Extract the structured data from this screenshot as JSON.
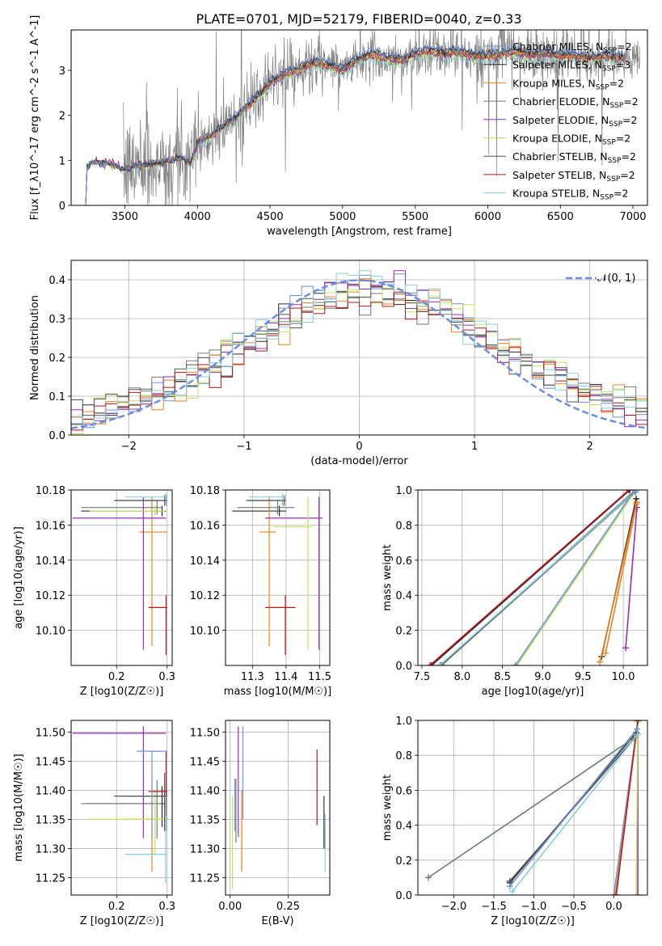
{
  "title": "PLATE=0701, MJD=52179, FIBERID=0040, z=0.33",
  "colors": {
    "data": "#808080",
    "series": [
      "#6d93d9",
      "#2a2a2a",
      "#f0821e",
      "#6e7e6e",
      "#9a2fb2",
      "#c6e05a",
      "#555555",
      "#b3191d",
      "#86d0dc"
    ],
    "normal": "#6a8fdc"
  },
  "chart_data": [
    {
      "type": "line",
      "panel": "spectrum",
      "xlabel": "wavelength [Angstrom, rest frame]",
      "ylabel": "Flux [f_λ10^-17 erg cm^-2 s^-1 A^-1]",
      "xlim": [
        3130,
        7100
      ],
      "ylim": [
        0,
        3.9
      ],
      "xticks": [
        3500,
        4000,
        4500,
        5000,
        5500,
        6000,
        6500,
        7000
      ],
      "yticks": [
        0,
        1,
        2,
        3
      ],
      "legend": {
        "placement": "top-right",
        "entries": [
          "Chabrier MILES, N_SSP=2",
          "Salpeter MILES, N_SSP=3",
          "Kroupa MILES, N_SSP=2",
          "Chabrier ELODIE, N_SSP=2",
          "Salpeter ELODIE, N_SSP=2",
          "Kroupa ELODIE, N_SSP=2",
          "Chabrier STELIB, N_SSP=2",
          "Salpeter STELIB, N_SSP=2",
          "Kroupa STELIB, N_SSP=2"
        ]
      },
      "model_anchors": {
        "x": [
          3240,
          3280,
          3400,
          3500,
          3600,
          3700,
          3800,
          3900,
          3950,
          4000,
          4100,
          4200,
          4300,
          4400,
          4500,
          4600,
          4700,
          4800,
          4900,
          5000,
          5100,
          5200,
          5300,
          5400,
          5500,
          5600,
          5700,
          5800,
          5900,
          6000,
          6100,
          6200,
          6300,
          6400,
          6500,
          6600,
          6700,
          6800,
          6900
        ],
        "y": [
          0.85,
          0.95,
          0.92,
          0.78,
          0.88,
          0.92,
          0.98,
          1.05,
          0.9,
          1.35,
          1.55,
          1.8,
          2.05,
          2.35,
          2.7,
          2.9,
          3.0,
          3.15,
          3.1,
          3.0,
          3.2,
          3.35,
          3.25,
          3.2,
          3.35,
          3.4,
          3.35,
          3.4,
          3.3,
          3.3,
          3.35,
          3.4,
          3.3,
          3.35,
          3.3,
          3.3,
          3.25,
          3.3,
          3.25
        ]
      },
      "data_range": [
        3230,
        7050
      ]
    },
    {
      "type": "line",
      "panel": "residuals",
      "xlabel": "(data-model)/error",
      "ylabel": "Normed distribution",
      "xlim": [
        -2.5,
        2.5
      ],
      "ylim": [
        0,
        0.45
      ],
      "xticks": [
        -2,
        -1,
        0,
        1,
        2
      ],
      "yticks": [
        0.0,
        0.1,
        0.2,
        0.3,
        0.4
      ],
      "legend": {
        "placement": "top-right",
        "entries": [
          "𝒩(0, 1)"
        ]
      },
      "bin_width": 0.1
    },
    {
      "type": "scatter",
      "panel": "age-vs-Z",
      "xlabel": "Z [log10(Z/Z☉)]",
      "ylabel": "age  [log10(age/yr)]",
      "xlim": [
        0.11,
        0.31
      ],
      "ylim": [
        10.08,
        10.18
      ],
      "xticks": [
        0.2,
        0.3
      ],
      "yticks": [
        10.1,
        10.12,
        10.14,
        10.16,
        10.18
      ],
      "points": [
        {
          "x": 0.298,
          "y": 10.174,
          "xerr": [
            0.1,
            0.002
          ],
          "yerr": [
            0.003,
            0.003
          ]
        },
        {
          "x": 0.29,
          "y": 10.168,
          "xerr": [
            0.16,
            0.008
          ],
          "yerr": [
            0.003,
            0.003
          ]
        },
        {
          "x": 0.27,
          "y": 10.156,
          "xerr": [
            0.025,
            0.03
          ],
          "yerr": [
            0.065,
            0.02
          ]
        },
        {
          "x": 0.28,
          "y": 10.17,
          "xerr": [
            0.15,
            0.01
          ],
          "yerr": [
            0.004,
            0.004
          ]
        },
        {
          "x": 0.253,
          "y": 10.164,
          "xerr": [
            0.14,
            0.045
          ],
          "yerr": [
            0.075,
            0.012
          ]
        },
        {
          "x": 0.276,
          "y": 10.168,
          "xerr": [
            0.13,
            0.02
          ],
          "yerr": [
            0.003,
            0.003
          ]
        },
        {
          "x": 0.295,
          "y": 10.174,
          "xerr": [
            0.1,
            0.005
          ],
          "yerr": [
            0.003,
            0.003
          ]
        },
        {
          "x": 0.298,
          "y": 10.113,
          "xerr": [
            0.035,
            0.002
          ],
          "yerr": [
            0.027,
            0.007
          ]
        },
        {
          "x": 0.297,
          "y": 10.176,
          "xerr": [
            0.08,
            0.003
          ],
          "yerr": [
            0.002,
            0.002
          ]
        }
      ]
    },
    {
      "type": "scatter",
      "panel": "age-vs-mass",
      "xlabel": "mass [log10(M/M☉)]",
      "ylabel": "",
      "xlim": [
        11.22,
        11.53
      ],
      "ylim": [
        10.08,
        10.18
      ],
      "xticks": [
        11.3,
        11.4,
        11.5
      ],
      "yticks": [
        10.1,
        10.12,
        10.14,
        10.16,
        10.18
      ],
      "points": [
        {
          "x": 11.39,
          "y": 10.174,
          "xerr": [
            0.11,
            0.005
          ],
          "yerr": [
            0.003,
            0.003
          ]
        },
        {
          "x": 11.38,
          "y": 10.168,
          "xerr": [
            0.14,
            0.02
          ],
          "yerr": [
            0.003,
            0.003
          ]
        },
        {
          "x": 11.35,
          "y": 10.156,
          "xerr": [
            0.03,
            0.02
          ],
          "yerr": [
            0.065,
            0.02
          ]
        },
        {
          "x": 11.375,
          "y": 10.17,
          "xerr": [
            0.12,
            0.05
          ],
          "yerr": [
            0.004,
            0.004
          ]
        },
        {
          "x": 11.498,
          "y": 10.164,
          "xerr": [
            0.16,
            0.01
          ],
          "yerr": [
            0.075,
            0.012
          ]
        },
        {
          "x": 11.465,
          "y": 10.159,
          "xerr": [
            0.1,
            0.01
          ],
          "yerr": [
            0.07,
            0.017
          ]
        },
        {
          "x": 11.395,
          "y": 10.174,
          "xerr": [
            0.11,
            0.005
          ],
          "yerr": [
            0.003,
            0.003
          ]
        },
        {
          "x": 11.398,
          "y": 10.113,
          "xerr": [
            0.06,
            0.03
          ],
          "yerr": [
            0.027,
            0.007
          ]
        },
        {
          "x": 11.39,
          "y": 10.176,
          "xerr": [
            0.1,
            0.01
          ],
          "yerr": [
            0.002,
            0.002
          ]
        }
      ]
    },
    {
      "type": "line",
      "panel": "massweight-vs-age",
      "xlabel": "age  [log10(age/yr)]",
      "ylabel": "mass weight",
      "xlim": [
        7.45,
        10.3
      ],
      "ylim": [
        0,
        1
      ],
      "xticks": [
        7.5,
        8.0,
        8.5,
        9.0,
        9.5,
        10.0
      ],
      "yticks": [
        0.0,
        0.2,
        0.4,
        0.6,
        0.8,
        1.0
      ],
      "series": [
        {
          "x": [
            7.73,
            10.16
          ],
          "y": [
            0.0,
            1.0
          ]
        },
        {
          "x": [
            7.62,
            10.08
          ],
          "y": [
            0.0,
            1.0
          ]
        },
        {
          "x": [
            9.78,
            10.17
          ],
          "y": [
            0.07,
            0.93
          ]
        },
        {
          "x": [
            7.74,
            10.15
          ],
          "y": [
            0.0,
            1.0
          ]
        },
        {
          "x": [
            10.03,
            10.17
          ],
          "y": [
            0.1,
            0.9
          ]
        },
        {
          "x": [
            8.68,
            10.16
          ],
          "y": [
            0.0,
            1.0
          ]
        },
        {
          "x": [
            7.74,
            10.15
          ],
          "y": [
            0.0,
            0.99
          ]
        },
        {
          "x": [
            7.6,
            10.07
          ],
          "y": [
            0.0,
            1.0
          ]
        },
        {
          "x": [
            7.72,
            10.17
          ],
          "y": [
            0.0,
            1.0
          ]
        },
        {
          "x": [
            8.66,
            10.14
          ],
          "y": [
            0.0,
            1.0
          ]
        },
        {
          "x": [
            9.73,
            10.16
          ],
          "y": [
            0.05,
            0.95
          ]
        },
        {
          "x": [
            9.71,
            10.16
          ],
          "y": [
            0.02,
            0.92
          ]
        }
      ]
    },
    {
      "type": "scatter",
      "panel": "mass-vs-Z",
      "xlabel": "Z [log10(Z/Z☉)]",
      "ylabel": "mass [log10(M/M☉)]",
      "xlim": [
        0.11,
        0.31
      ],
      "ylim": [
        11.22,
        11.52
      ],
      "xticks": [
        0.2,
        0.3
      ],
      "yticks": [
        11.25,
        11.3,
        11.35,
        11.4,
        11.45,
        11.5
      ],
      "points": [
        {
          "x": 0.298,
          "y": 11.39,
          "xerr": [
            0.09,
            0.002
          ],
          "yerr": [
            0.06,
            0.02
          ]
        },
        {
          "x": 0.29,
          "y": 11.377,
          "xerr": [
            0.15,
            0.008
          ],
          "yerr": [
            0.04,
            0.03
          ]
        },
        {
          "x": 0.27,
          "y": 11.35,
          "xerr": [
            0.06,
            0.03
          ],
          "yerr": [
            0.09,
            0.07
          ]
        },
        {
          "x": 0.28,
          "y": 11.377,
          "xerr": [
            0.15,
            0.01
          ],
          "yerr": [
            0.06,
            0.04
          ]
        },
        {
          "x": 0.253,
          "y": 11.498,
          "xerr": [
            0.14,
            0.045
          ],
          "yerr": [
            0.18,
            0.012
          ]
        },
        {
          "x": 0.276,
          "y": 11.35,
          "xerr": [
            0.13,
            0.02
          ],
          "yerr": [
            0.06,
            0.05
          ]
        },
        {
          "x": 0.295,
          "y": 11.39,
          "xerr": [
            0.1,
            0.005
          ],
          "yerr": [
            0.06,
            0.04
          ]
        },
        {
          "x": 0.298,
          "y": 11.398,
          "xerr": [
            0.035,
            0.002
          ],
          "yerr": [
            0.04,
            0.07
          ]
        },
        {
          "x": 0.297,
          "y": 11.29,
          "xerr": [
            0.08,
            0.003
          ],
          "yerr": [
            0.05,
            0.1
          ]
        },
        {
          "x": 0.27,
          "y": 11.467,
          "xerr": [
            0.03,
            0.03
          ],
          "yerr": [
            0.15,
            0.0
          ]
        }
      ]
    },
    {
      "type": "scatter",
      "panel": "mass-vs-EBV",
      "xlabel": "E(B-V)",
      "ylabel": "",
      "xlim": [
        -0.02,
        0.43
      ],
      "ylim": [
        11.22,
        11.52
      ],
      "xticks": [
        0.0,
        0.25
      ],
      "yticks": [
        11.25,
        11.3,
        11.35,
        11.4,
        11.45,
        11.5
      ],
      "points": [
        {
          "x": 0.02,
          "y": 11.39,
          "yerr": [
            0.06,
            0.03
          ]
        },
        {
          "x": 0.405,
          "y": 11.36,
          "yerr": [
            0.06,
            0.03
          ]
        },
        {
          "x": 0.05,
          "y": 11.33,
          "yerr": [
            0.07,
            0.07
          ]
        },
        {
          "x": 0.025,
          "y": 11.37,
          "yerr": [
            0.06,
            0.05
          ]
        },
        {
          "x": 0.035,
          "y": 11.45,
          "yerr": [
            0.13,
            0.06
          ]
        },
        {
          "x": 0.01,
          "y": 11.32,
          "yerr": [
            0.09,
            0.07
          ]
        },
        {
          "x": 0.405,
          "y": 11.37,
          "yerr": [
            0.04,
            0.02
          ]
        },
        {
          "x": 0.375,
          "y": 11.41,
          "yerr": [
            0.07,
            0.06
          ]
        },
        {
          "x": 0.41,
          "y": 11.29,
          "yerr": [
            0.03,
            0.07
          ]
        },
        {
          "x": 0.055,
          "y": 11.44,
          "yerr": [
            0.09,
            0.07
          ]
        }
      ]
    },
    {
      "type": "line",
      "panel": "massweight-vs-Z",
      "xlabel": "Z [log10(Z/Z☉)]",
      "ylabel": "mass weight",
      "xlim": [
        -2.45,
        0.42
      ],
      "ylim": [
        0,
        1
      ],
      "xticks": [
        -2.0,
        -1.5,
        -1.0,
        -0.5,
        0.0
      ],
      "yticks": [
        0.0,
        0.2,
        0.4,
        0.6,
        0.8,
        1.0
      ],
      "series": [
        {
          "x": [
            0.0,
            0.3
          ],
          "y": [
            0.0,
            1.0
          ]
        },
        {
          "x": [
            -1.3,
            0.28
          ],
          "y": [
            0.07,
            0.93
          ]
        },
        {
          "x": [
            0.02,
            0.3
          ],
          "y": [
            0.0,
            1.0
          ]
        },
        {
          "x": [
            -2.32,
            0.25
          ],
          "y": [
            0.1,
            0.9
          ]
        },
        {
          "x": [
            0.3,
            0.3
          ],
          "y": [
            0.0,
            1.0
          ]
        },
        {
          "x": [
            0.28,
            0.3
          ],
          "y": [
            0.0,
            0.99
          ]
        },
        {
          "x": [
            -1.3,
            0.3
          ],
          "y": [
            0.08,
            0.92
          ]
        },
        {
          "x": [
            0.03,
            0.3
          ],
          "y": [
            0.0,
            1.0
          ]
        },
        {
          "x": [
            -1.27,
            0.3
          ],
          "y": [
            0.02,
            0.92
          ]
        },
        {
          "x": [
            -1.3,
            0.29
          ],
          "y": [
            0.05,
            0.95
          ]
        }
      ]
    }
  ]
}
